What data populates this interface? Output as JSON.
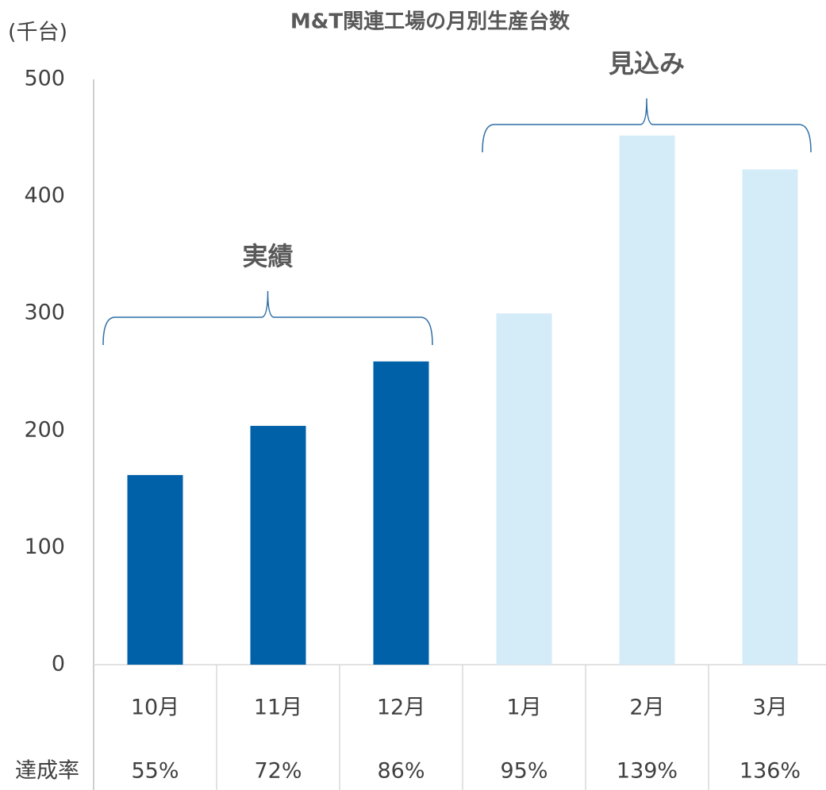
{
  "chart_data": {
    "type": "bar",
    "title": "M&T関連工場の月別生産台数",
    "y_unit": "(千台)",
    "categories": [
      "10月",
      "11月",
      "12月",
      "1月",
      "2月",
      "3月"
    ],
    "values": [
      162,
      204,
      259,
      300,
      452,
      423
    ],
    "colors": [
      "#0060a8",
      "#0060a8",
      "#0060a8",
      "#d4ebf8",
      "#d4ebf8",
      "#d4ebf8"
    ],
    "ylim": [
      0,
      500
    ],
    "yticks": [
      0,
      100,
      200,
      300,
      400,
      500
    ],
    "grid": false,
    "annotations": [
      "実績",
      "見込み"
    ],
    "rates": {
      "label": "達成率",
      "values": [
        55,
        72,
        86,
        95,
        139,
        136
      ],
      "value_labels": [
        "55%",
        "72%",
        "86%",
        "95%",
        "139%",
        "136%"
      ]
    }
  }
}
